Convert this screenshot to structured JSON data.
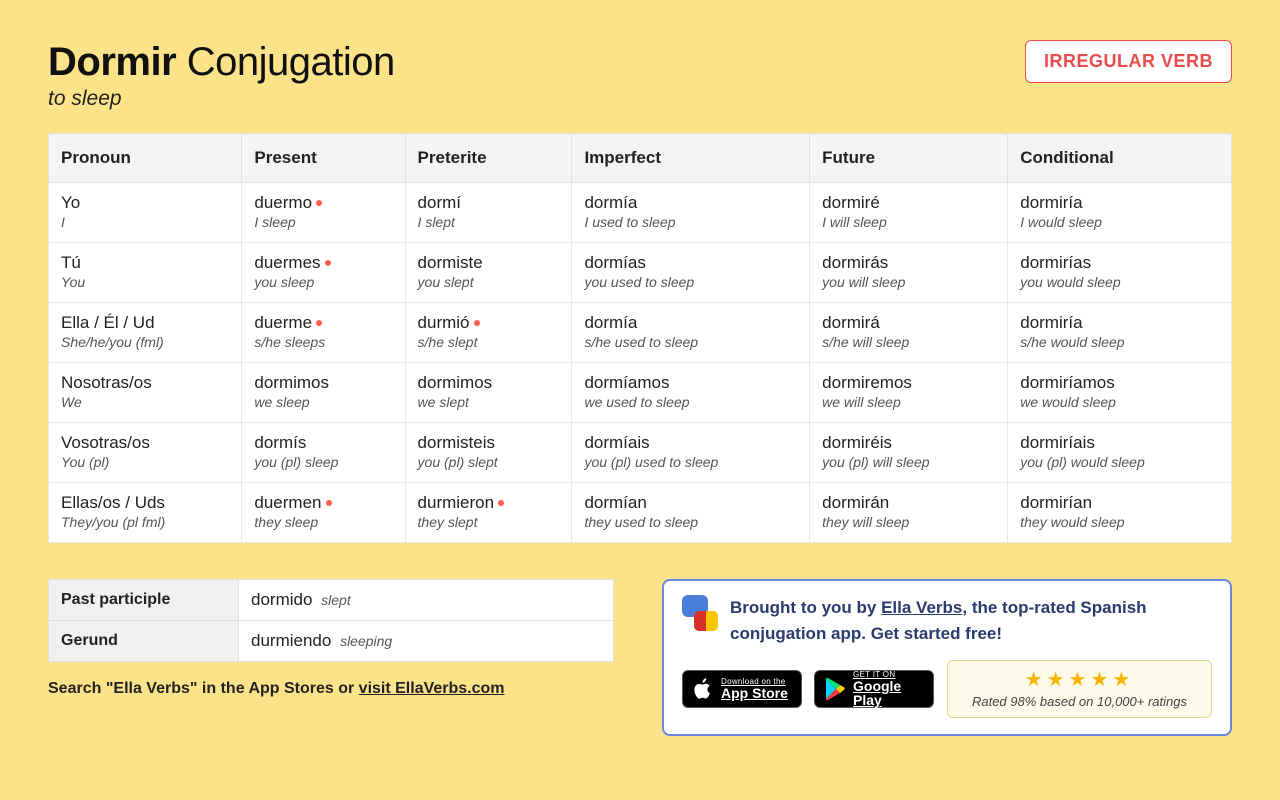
{
  "header": {
    "verb": "Dormir",
    "title_suffix": "Conjugation",
    "translation": "to sleep",
    "badge": "IRREGULAR VERB"
  },
  "table": {
    "columns": [
      "Pronoun",
      "Present",
      "Preterite",
      "Imperfect",
      "Future",
      "Conditional"
    ],
    "rows": [
      {
        "pronoun": {
          "main": "Yo",
          "sub": "I"
        },
        "cells": [
          {
            "main": "duermo",
            "sub": "I sleep",
            "irregular": true
          },
          {
            "main": "dormí",
            "sub": "I slept",
            "irregular": false
          },
          {
            "main": "dormía",
            "sub": "I used to sleep",
            "irregular": false
          },
          {
            "main": "dormiré",
            "sub": "I will sleep",
            "irregular": false
          },
          {
            "main": "dormiría",
            "sub": "I would sleep",
            "irregular": false
          }
        ]
      },
      {
        "pronoun": {
          "main": "Tú",
          "sub": "You"
        },
        "cells": [
          {
            "main": "duermes",
            "sub": "you sleep",
            "irregular": true
          },
          {
            "main": "dormiste",
            "sub": "you slept",
            "irregular": false
          },
          {
            "main": "dormías",
            "sub": "you used to sleep",
            "irregular": false
          },
          {
            "main": "dormirás",
            "sub": "you will sleep",
            "irregular": false
          },
          {
            "main": "dormirías",
            "sub": "you would sleep",
            "irregular": false
          }
        ]
      },
      {
        "pronoun": {
          "main": "Ella / Él / Ud",
          "sub": "She/he/you (fml)"
        },
        "cells": [
          {
            "main": "duerme",
            "sub": "s/he sleeps",
            "irregular": true
          },
          {
            "main": "durmió",
            "sub": "s/he slept",
            "irregular": true
          },
          {
            "main": "dormía",
            "sub": "s/he used to sleep",
            "irregular": false
          },
          {
            "main": "dormirá",
            "sub": "s/he will sleep",
            "irregular": false
          },
          {
            "main": "dormiría",
            "sub": "s/he would sleep",
            "irregular": false
          }
        ]
      },
      {
        "pronoun": {
          "main": "Nosotras/os",
          "sub": "We"
        },
        "cells": [
          {
            "main": "dormimos",
            "sub": "we sleep",
            "irregular": false
          },
          {
            "main": "dormimos",
            "sub": "we slept",
            "irregular": false
          },
          {
            "main": "dormíamos",
            "sub": "we used to sleep",
            "irregular": false
          },
          {
            "main": "dormiremos",
            "sub": "we will sleep",
            "irregular": false
          },
          {
            "main": "dormiríamos",
            "sub": "we would sleep",
            "irregular": false
          }
        ]
      },
      {
        "pronoun": {
          "main": "Vosotras/os",
          "sub": "You (pl)"
        },
        "cells": [
          {
            "main": "dormís",
            "sub": "you (pl) sleep",
            "irregular": false
          },
          {
            "main": "dormisteis",
            "sub": "you (pl) slept",
            "irregular": false
          },
          {
            "main": "dormíais",
            "sub": "you (pl) used to sleep",
            "irregular": false
          },
          {
            "main": "dormiréis",
            "sub": "you (pl) will sleep",
            "irregular": false
          },
          {
            "main": "dormiríais",
            "sub": "you (pl) would sleep",
            "irregular": false
          }
        ]
      },
      {
        "pronoun": {
          "main": "Ellas/os / Uds",
          "sub": "They/you (pl fml)"
        },
        "cells": [
          {
            "main": "duermen",
            "sub": "they sleep",
            "irregular": true
          },
          {
            "main": "durmieron",
            "sub": "they slept",
            "irregular": true
          },
          {
            "main": "dormían",
            "sub": "they used to sleep",
            "irregular": false
          },
          {
            "main": "dormirán",
            "sub": "they will sleep",
            "irregular": false
          },
          {
            "main": "dormirían",
            "sub": "they would sleep",
            "irregular": false
          }
        ]
      }
    ]
  },
  "participles": {
    "past_label": "Past participle",
    "past_value": "dormido",
    "past_sub": "slept",
    "gerund_label": "Gerund",
    "gerund_value": "durmiendo",
    "gerund_sub": "sleeping"
  },
  "search_line": {
    "prefix": "Search \"Ella Verbs\" in the App Stores or ",
    "link_text": "visit EllaVerbs.com"
  },
  "promo": {
    "text_prefix": "Brought to you by ",
    "link": "Ella Verbs",
    "text_suffix": ", the top-rated Spanish conjugation app. Get started free!",
    "appstore": {
      "line1": "Download on the",
      "line2": "App Store"
    },
    "playstore": {
      "line1": "GET IT ON",
      "line2": "Google Play"
    },
    "rating_line": "Rated 98% based on 10,000+ ratings"
  },
  "colors": {
    "background": "#fce289",
    "badge_border": "#e94c4c",
    "promo_border": "#6c87df",
    "promo_text": "#2a3b6e",
    "star": "#f7b500",
    "dot": "#ff5c4d"
  }
}
